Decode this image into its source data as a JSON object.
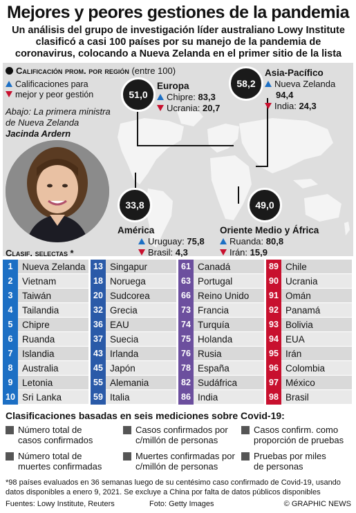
{
  "title": "Mejores y peores gestiones de la pandemia",
  "subtitle": "Un análisis del grupo de investigación líder australiano Lowy Institute clasificó a casi 100 países por su manejo de la pandemia de coronavirus, colocando a Nueva Zelanda en el primer sitio de la lista",
  "avg_header": {
    "label": "Calificación prom. por región",
    "paren": "(entre 100)"
  },
  "legend_note": {
    "line1": "Calificaciones para",
    "line2": "mejor y peor gestión"
  },
  "caption": {
    "line1": "Abajo: La primera ministra",
    "line2": "de Nueva Zelanda",
    "name": "Jacinda Ardern"
  },
  "regions": {
    "europa": {
      "name": "Europa",
      "avg": "51,0",
      "best_country": "Chipre:",
      "best_score": "83,3",
      "worst_country": "Ucrania:",
      "worst_score": "20,7"
    },
    "asia": {
      "name": "Asia-Pacífico",
      "avg": "58,2",
      "best_country": "Nueva Zelanda",
      "best_score": "94,4",
      "worst_country": "India:",
      "worst_score": "24,3"
    },
    "america": {
      "name": "América",
      "avg": "33,8",
      "best_country": "Uruguay:",
      "best_score": "75,8",
      "worst_country": "Brasil:",
      "worst_score": "4,3"
    },
    "oriente": {
      "name": "Oriente Medio y África",
      "avg": "49,0",
      "best_country": "Ruanda:",
      "best_score": "80,8",
      "worst_country": "Irán:",
      "worst_score": "15,9"
    }
  },
  "ranks_title": "Clasif. selectas *",
  "columns": [
    {
      "color": "#1c6fc4",
      "items": [
        {
          "rank": "1",
          "country": "Nueva Zelanda"
        },
        {
          "rank": "2",
          "country": "Vietnam"
        },
        {
          "rank": "3",
          "country": "Taiwán"
        },
        {
          "rank": "4",
          "country": "Tailandia"
        },
        {
          "rank": "5",
          "country": "Chipre"
        },
        {
          "rank": "6",
          "country": "Ruanda"
        },
        {
          "rank": "7",
          "country": "Islandia"
        },
        {
          "rank": "8",
          "country": "Australia"
        },
        {
          "rank": "9",
          "country": "Letonia"
        },
        {
          "rank": "10",
          "country": "Sri Lanka"
        }
      ]
    },
    {
      "color": "#2a5aa8",
      "items": [
        {
          "rank": "13",
          "country": "Singapur"
        },
        {
          "rank": "18",
          "country": "Noruega"
        },
        {
          "rank": "20",
          "country": "Sudcorea"
        },
        {
          "rank": "32",
          "country": "Grecia"
        },
        {
          "rank": "36",
          "country": "EAU"
        },
        {
          "rank": "37",
          "country": "Suecia"
        },
        {
          "rank": "43",
          "country": "Irlanda"
        },
        {
          "rank": "45",
          "country": "Japón"
        },
        {
          "rank": "55",
          "country": "Alemania"
        },
        {
          "rank": "59",
          "country": "Italia"
        }
      ]
    },
    {
      "color": "#6c4f9e",
      "items": [
        {
          "rank": "61",
          "country": "Canadá"
        },
        {
          "rank": "63",
          "country": "Portugal"
        },
        {
          "rank": "66",
          "country": "Reino Unido"
        },
        {
          "rank": "73",
          "country": "Francia"
        },
        {
          "rank": "74",
          "country": "Turquía"
        },
        {
          "rank": "75",
          "country": "Holanda"
        },
        {
          "rank": "76",
          "country": "Rusia"
        },
        {
          "rank": "78",
          "country": "España"
        },
        {
          "rank": "82",
          "country": "Sudáfrica"
        },
        {
          "rank": "86",
          "country": "India"
        }
      ]
    },
    {
      "color": "#c8102e",
      "items": [
        {
          "rank": "89",
          "country": "Chile"
        },
        {
          "rank": "90",
          "country": "Ucrania"
        },
        {
          "rank": "91",
          "country": "Omán"
        },
        {
          "rank": "92",
          "country": "Panamá"
        },
        {
          "rank": "93",
          "country": "Bolivia"
        },
        {
          "rank": "94",
          "country": "EUA"
        },
        {
          "rank": "95",
          "country": "Irán"
        },
        {
          "rank": "96",
          "country": "Colombia"
        },
        {
          "rank": "97",
          "country": "México"
        },
        {
          "rank": "98",
          "country": "Brasil"
        }
      ]
    }
  ],
  "criteria_title": "Clasificaciones basadas en seis mediciones sobre Covid-19:",
  "criteria": [
    {
      "l1": "Número total de",
      "l2": "casos confirmados"
    },
    {
      "l1": "Casos confirmados por",
      "l2": "c/millón de personas"
    },
    {
      "l1": "Casos confirm. como",
      "l2": "proporción de pruebas"
    },
    {
      "l1": "Número total de",
      "l2": "muertes confirmadas"
    },
    {
      "l1": "Muertes confirmadas por",
      "l2": "c/millón de personas"
    },
    {
      "l1": "Pruebas por miles",
      "l2": "de personas"
    }
  ],
  "footnote": "*98 países evaluados en 36 semanas luego de su centésimo caso confirmado de Covid-19, usando datos disponibles a enero 9, 2021. Se excluye a China por falta de datos públicos disponibles",
  "footer": {
    "sources": "Fuentes: Lowy Institute, Reuters",
    "photo": "Foto: Getty Images",
    "brand": "© GRAPHIC NEWS"
  }
}
